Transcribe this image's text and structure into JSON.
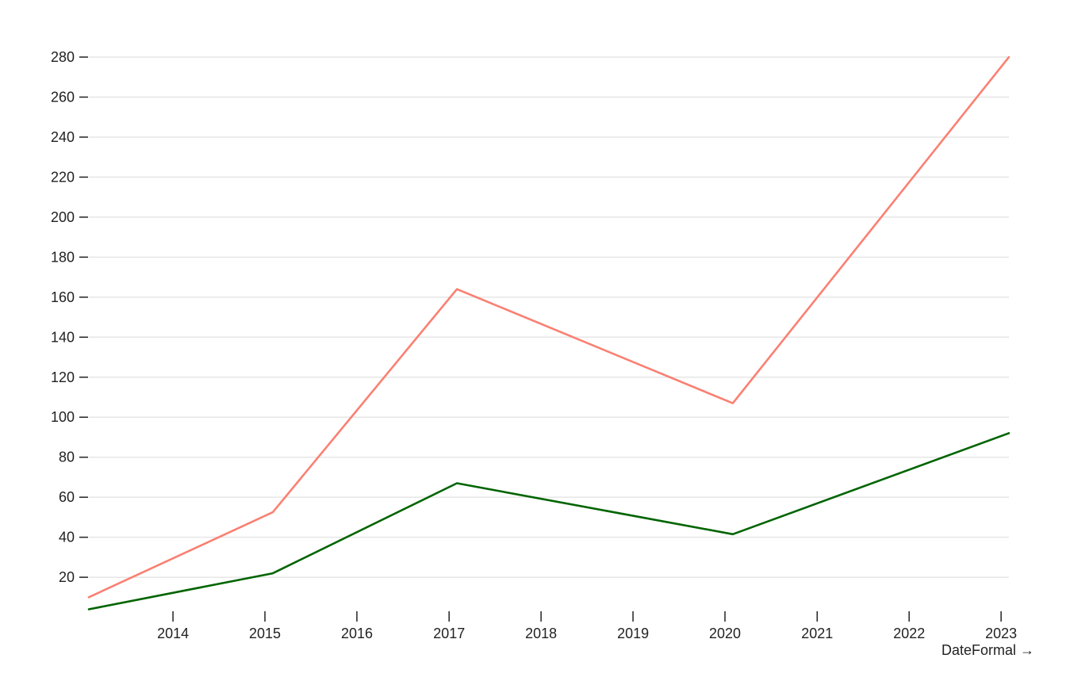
{
  "chart_data": {
    "type": "line",
    "title": "",
    "xlabel": "DateFormal →",
    "ylabel": "",
    "x": [
      "2013-02-01",
      "2015-02-01",
      "2017-02-01",
      "2020-02-01",
      "2023-02-01"
    ],
    "xlim": [
      "2013-02-01",
      "2023-02-01"
    ],
    "x_ticks": [
      "2014",
      "2015",
      "2016",
      "2017",
      "2018",
      "2019",
      "2020",
      "2021",
      "2022",
      "2023"
    ],
    "ylim": [
      3,
      280
    ],
    "y_ticks": [
      "20",
      "40",
      "60",
      "80",
      "100",
      "120",
      "140",
      "160",
      "180",
      "200",
      "220",
      "240",
      "260",
      "280"
    ],
    "grid": true,
    "legend": "none",
    "series": [
      {
        "color": "#fa8072",
        "values": [
          10,
          52.5,
          164,
          107,
          280
        ]
      },
      {
        "color": "#006400",
        "values": [
          4,
          22,
          67,
          41.5,
          92
        ]
      }
    ]
  }
}
